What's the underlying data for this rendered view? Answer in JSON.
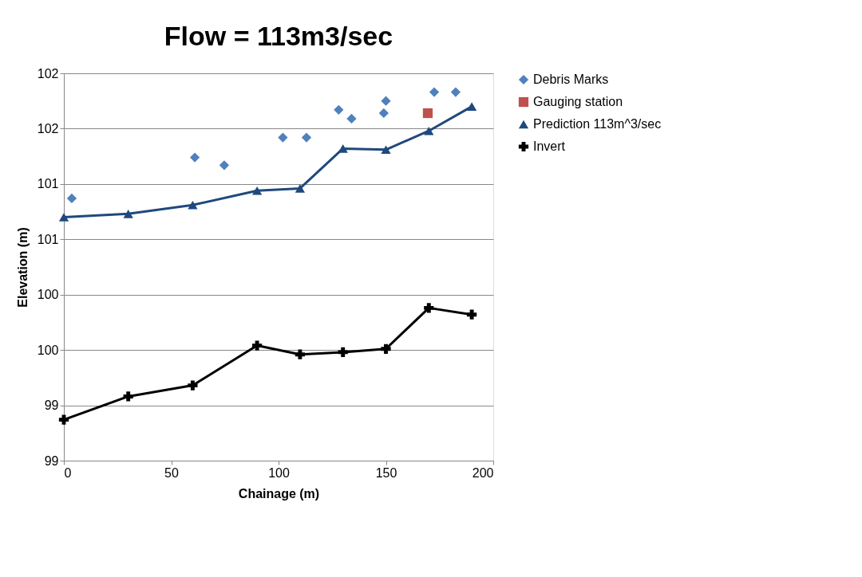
{
  "chart_data": {
    "type": "scatter",
    "title": "Flow  = 113m3/sec",
    "xlabel": "Chainage (m)",
    "ylabel": "Elevation (m)",
    "xlim": [
      0,
      200
    ],
    "xticks": [
      0,
      50,
      100,
      150,
      200
    ],
    "ylim": [
      98.5,
      102.0
    ],
    "yticks": [
      {
        "value": 98.5,
        "label": "99"
      },
      {
        "value": 99.0,
        "label": "99"
      },
      {
        "value": 99.5,
        "label": "100"
      },
      {
        "value": 100.0,
        "label": "100"
      },
      {
        "value": 100.5,
        "label": "101"
      },
      {
        "value": 101.0,
        "label": "101"
      },
      {
        "value": 101.5,
        "label": "102"
      },
      {
        "value": 102.0,
        "label": "102"
      }
    ],
    "grid": "y",
    "legend": "right",
    "series": [
      {
        "name": "Debris Marks",
        "marker": "diamond",
        "color": "#4f81bd",
        "x": [
          3.7,
          61,
          74.7,
          102,
          113,
          128,
          134,
          149,
          150,
          172.5,
          182.5
        ],
        "values": [
          100.87,
          101.24,
          101.17,
          101.42,
          101.42,
          101.67,
          101.59,
          101.64,
          101.75,
          101.83,
          101.83
        ]
      },
      {
        "name": "Gauging station",
        "marker": "square",
        "color": "#c0504d",
        "x": [
          169.5
        ],
        "values": [
          101.64
        ]
      },
      {
        "name": "Prediction 113m^3/sec",
        "type": "line",
        "marker": "triangle",
        "color": "#1f497d",
        "x": [
          0,
          30,
          60,
          90,
          110,
          130,
          150,
          170,
          190
        ],
        "values": [
          100.7,
          100.73,
          100.81,
          100.94,
          100.96,
          101.32,
          101.31,
          101.48,
          101.7
        ]
      },
      {
        "name": "Invert",
        "type": "line",
        "marker": "cross",
        "color": "#000000",
        "x": [
          0,
          30,
          60,
          90,
          110,
          130,
          150,
          170,
          190
        ],
        "values": [
          98.87,
          99.08,
          99.18,
          99.54,
          99.46,
          99.48,
          99.51,
          99.88,
          99.82
        ]
      }
    ]
  }
}
